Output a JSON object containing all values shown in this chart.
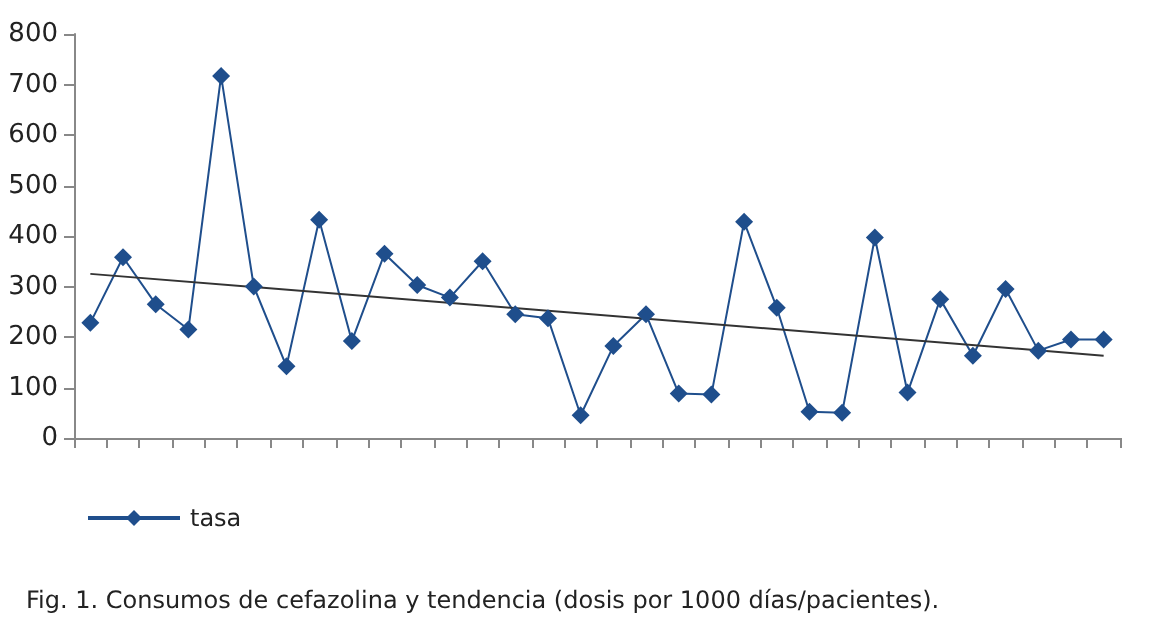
{
  "chart_data": {
    "type": "line",
    "title": "Fig. 1. Consumos de cefazolina y tendencia (dosis por 1000 días/pacientes).",
    "categories": [
      null,
      null,
      null,
      null,
      null,
      null,
      null,
      null,
      null,
      null,
      null,
      null,
      null,
      null,
      null,
      null,
      null,
      null,
      null,
      null,
      null,
      null,
      null,
      null,
      null,
      null,
      null,
      null,
      null,
      null,
      null,
      null
    ],
    "series": [
      {
        "name": "tasa",
        "color": "#1f4e8c",
        "marker": "diamond",
        "values": [
          228,
          358,
          265,
          215,
          717,
          300,
          142,
          432,
          192,
          365,
          303,
          278,
          350,
          245,
          237,
          45,
          182,
          245,
          88,
          86,
          428,
          258,
          52,
          50,
          397,
          90,
          275,
          163,
          295,
          173,
          195,
          195
        ]
      },
      {
        "color": "#333333",
        "marker": "none",
        "values": [
          325,
          null,
          null,
          null,
          null,
          null,
          null,
          null,
          null,
          null,
          null,
          null,
          null,
          null,
          null,
          null,
          null,
          null,
          null,
          null,
          null,
          null,
          null,
          null,
          null,
          null,
          null,
          null,
          null,
          null,
          null,
          163
        ]
      }
    ],
    "ylim": [
      0,
      800
    ],
    "yticks": [
      0,
      100,
      200,
      300,
      400,
      500,
      600,
      700,
      800
    ],
    "grid": false,
    "legend": "bottom left",
    "tick_labels": "y"
  }
}
